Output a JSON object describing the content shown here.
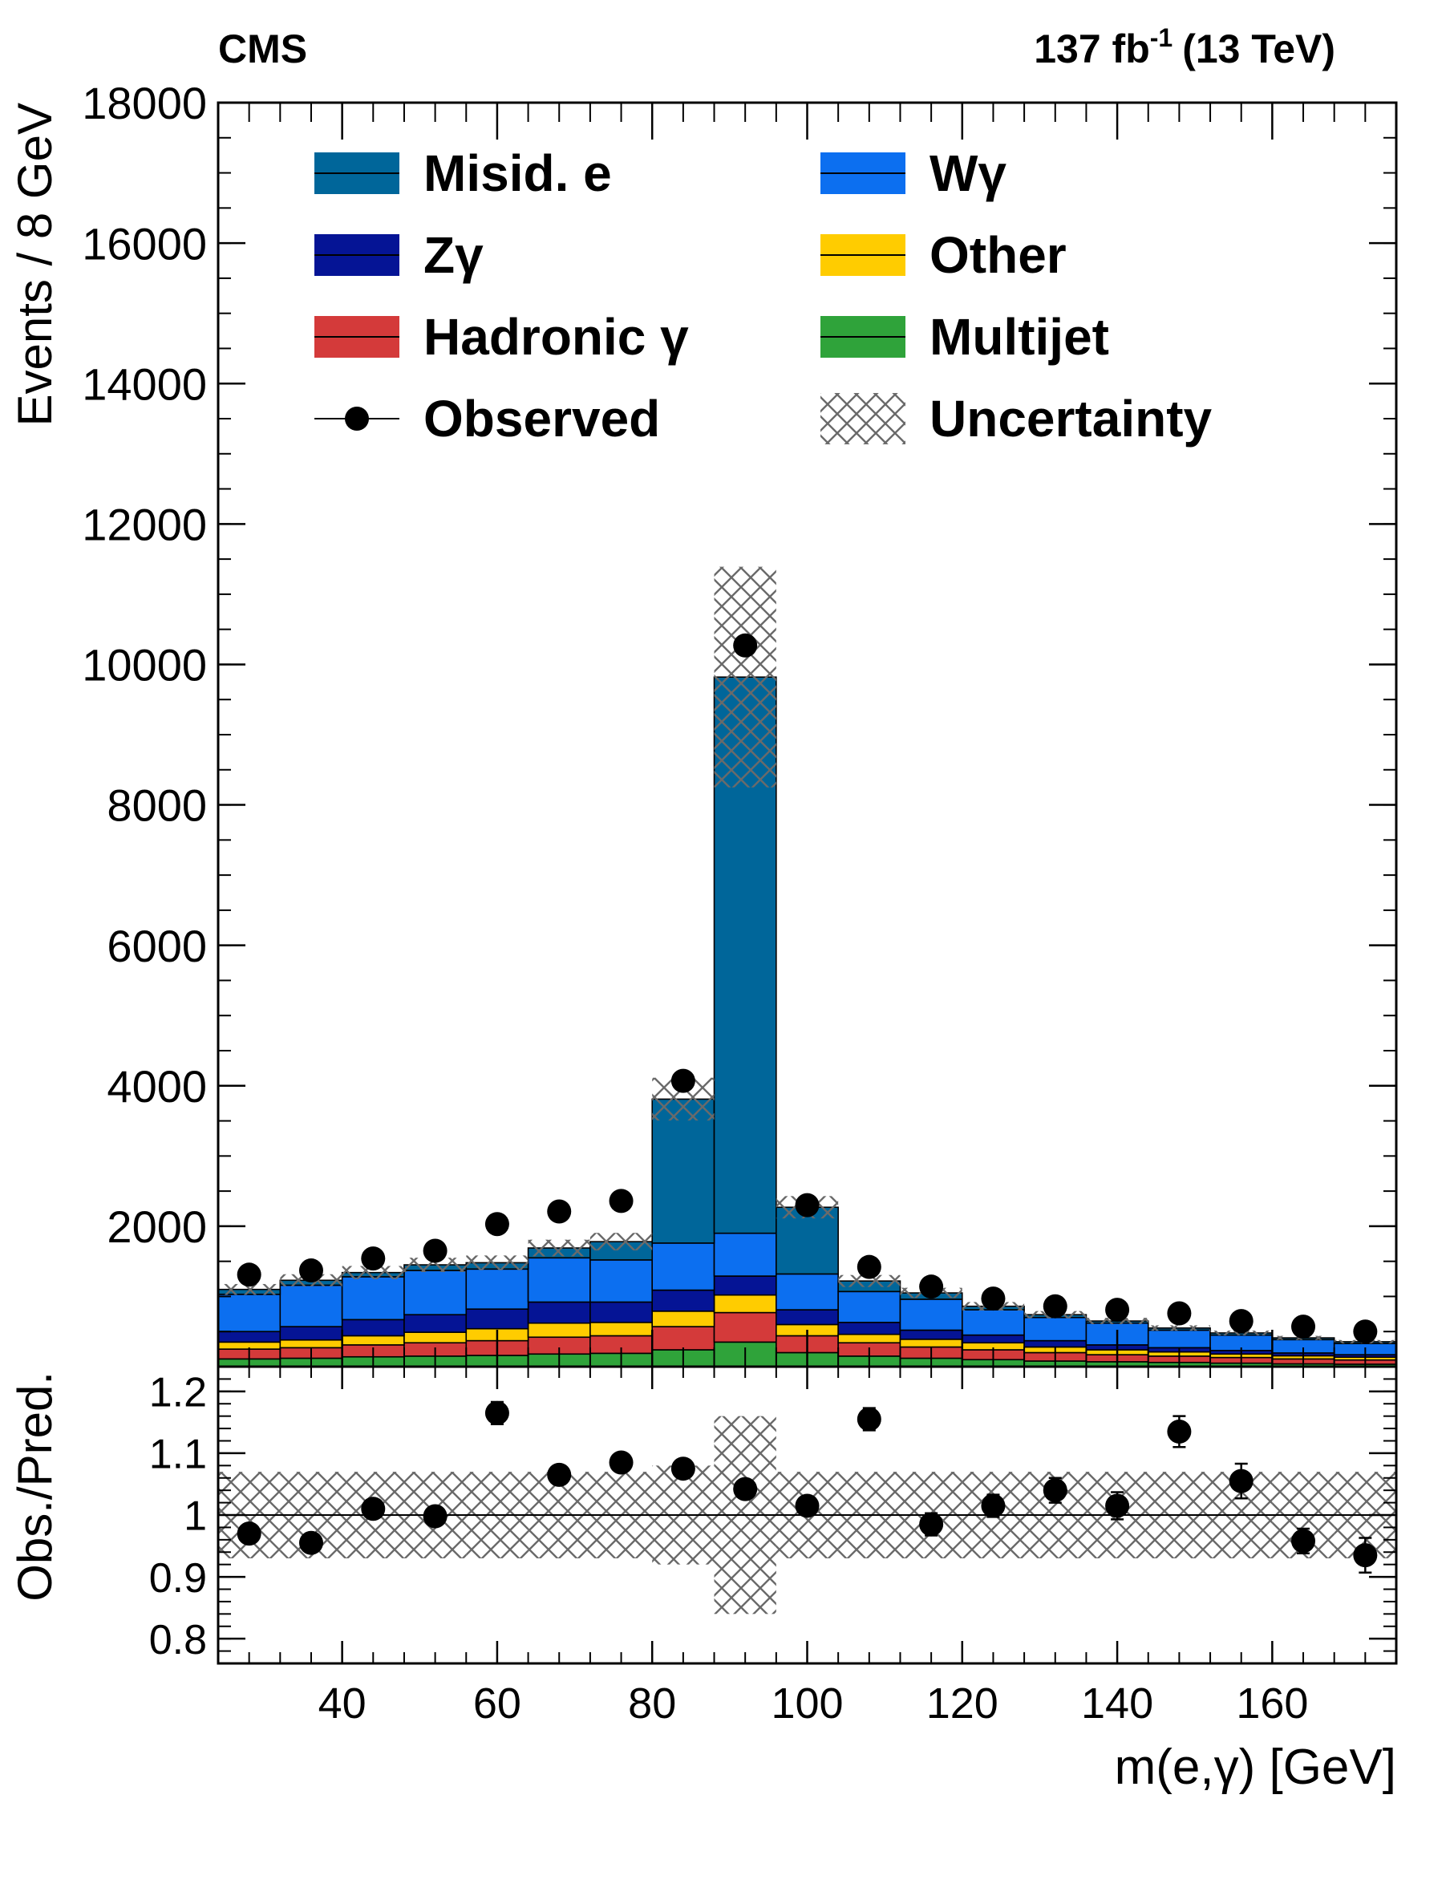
{
  "header": {
    "experiment": "CMS",
    "lumi": "137 fb",
    "lumi_exp": "-1",
    "energy": "(13 TeV)"
  },
  "chart_data": [
    {
      "type": "bar",
      "stacked": true,
      "ylabel": "Events / 8 GeV",
      "ylim": [
        0,
        18000
      ],
      "yticks": [
        "2000",
        "4000",
        "6000",
        "8000",
        "10000",
        "12000",
        "14000",
        "16000",
        "18000"
      ],
      "xlim": [
        24,
        176
      ],
      "bin_edges": [
        24,
        32,
        40,
        48,
        56,
        64,
        72,
        80,
        88,
        96,
        104,
        112,
        120,
        128,
        136,
        144,
        152,
        160,
        168,
        176
      ],
      "bin_centers": [
        28,
        36,
        44,
        52,
        60,
        68,
        76,
        84,
        92,
        100,
        108,
        116,
        124,
        132,
        140,
        148,
        156,
        164,
        172
      ],
      "legend_position": "top",
      "series": [
        {
          "name": "Multijet",
          "color": "#2fa33a",
          "values": [
            110,
            120,
            140,
            150,
            160,
            180,
            190,
            240,
            350,
            200,
            150,
            120,
            100,
            80,
            70,
            60,
            50,
            40,
            35
          ]
        },
        {
          "name": "Hadronic  γ",
          "color": "#d43a3a",
          "values": [
            140,
            150,
            170,
            190,
            210,
            240,
            250,
            330,
            420,
            240,
            190,
            160,
            140,
            120,
            100,
            90,
            80,
            70,
            60
          ]
        },
        {
          "name": "Other",
          "color": "#ffcc00",
          "values": [
            100,
            110,
            130,
            150,
            170,
            200,
            190,
            220,
            250,
            160,
            120,
            110,
            100,
            80,
            70,
            60,
            50,
            45,
            40
          ]
        },
        {
          "name": "Zγ",
          "color": "#051495",
          "values": [
            150,
            190,
            230,
            250,
            280,
            300,
            290,
            300,
            270,
            210,
            170,
            130,
            110,
            90,
            70,
            60,
            50,
            40,
            35
          ]
        },
        {
          "name": "Wγ",
          "color": "#0c6ff0",
          "values": [
            530,
            590,
            610,
            630,
            570,
            630,
            600,
            670,
            610,
            510,
            440,
            440,
            360,
            330,
            310,
            250,
            220,
            190,
            160
          ]
        },
        {
          "name": "Misid. e",
          "color": "#00669a",
          "values": [
            70,
            70,
            60,
            80,
            90,
            140,
            260,
            2050,
            7920,
            950,
            150,
            90,
            50,
            40,
            30,
            30,
            30,
            25,
            25
          ]
        }
      ],
      "observed": {
        "name": "Observed",
        "values": [
          1310,
          1370,
          1540,
          1650,
          2030,
          2210,
          2360,
          4070,
          10270,
          2300,
          1420,
          1140,
          970,
          860,
          810,
          760,
          650,
          570,
          500
        ]
      },
      "uncertainty": {
        "name": "Uncertainty",
        "relative": [
          0.07,
          0.07,
          0.07,
          0.07,
          0.07,
          0.07,
          0.07,
          0.08,
          0.16,
          0.07,
          0.07,
          0.07,
          0.07,
          0.07,
          0.07,
          0.07,
          0.07,
          0.07,
          0.07
        ]
      }
    },
    {
      "type": "scatter",
      "xlabel": "m(e,γ) [GeV]",
      "ylabel": "Obs./Pred.",
      "ylim": [
        0.76,
        1.24
      ],
      "yticks": [
        "0.8",
        "0.9",
        "1",
        "1.1",
        "1.2"
      ],
      "xticks": [
        "40",
        "60",
        "80",
        "100",
        "120",
        "140",
        "160"
      ],
      "reference_line": 1,
      "ratio": [
        0.97,
        0.955,
        1.01,
        0.998,
        1.165,
        1.065,
        1.085,
        1.075,
        1.042,
        1.015,
        1.155,
        0.985,
        1.015,
        1.04,
        1.015,
        1.135,
        1.055,
        0.958,
        0.935
      ],
      "ratio_err": [
        0.012,
        0.012,
        0.012,
        0.012,
        0.018,
        0.015,
        0.012,
        0.01,
        0.008,
        0.012,
        0.018,
        0.018,
        0.018,
        0.02,
        0.022,
        0.025,
        0.028,
        0.02,
        0.028
      ]
    }
  ]
}
